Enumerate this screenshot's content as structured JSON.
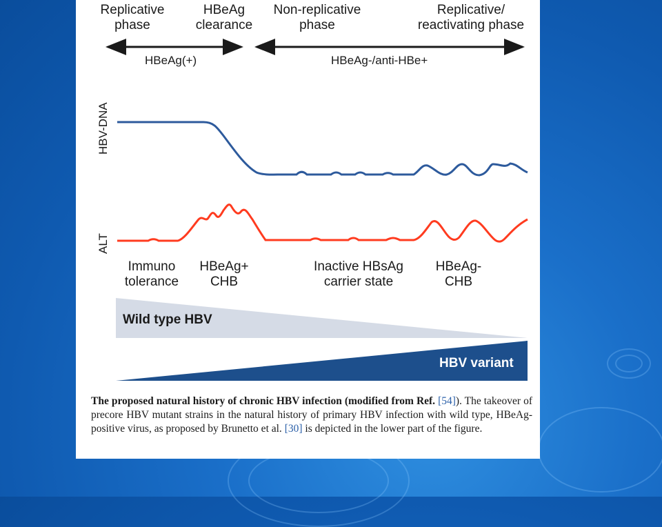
{
  "phases": {
    "replicative": "Replicative\nphase",
    "hbeag_clearance": "HBeAg\nclearance",
    "non_replicative": "Non-replicative\nphase",
    "reactivating": "Replicative/\nreactivating phase"
  },
  "bands": {
    "hbeag_pos": "HBeAg(+)",
    "hbeag_neg": "HBeAg-/anti-HBe+"
  },
  "axes": {
    "hbv_dna": "HBV-DNA",
    "alt": "ALT"
  },
  "stages": {
    "immuno": "Immuno\ntolerance",
    "hbeag_pos_chb": "HBeAg+\nCHB",
    "inactive": "Inactive HBsAg\ncarrier state",
    "hbeag_neg_chb": "HBeAg-\nCHB"
  },
  "wedges": {
    "wild_type": "Wild type HBV",
    "variant": "HBV variant"
  },
  "caption": {
    "bold_lead": "The proposed natural history of chronic HBV infection (modified from Ref.",
    "ref1": "[54]",
    "after_ref1": "). The takeover of precore HBV mutant strains in the natural history of primary HBV infection with wild type, HBeAg-positive virus, as proposed by Brunetto et al.",
    "ref2": "[30]",
    "tail": "is depicted in the lower part of the figure."
  },
  "colors": {
    "background": "#1565c0",
    "hbv_dna_line": "#2d5a9c",
    "alt_line": "#ff3b1f",
    "wild_type_wedge": "#d5dbe6",
    "variant_wedge": "#1d4f8c"
  }
}
